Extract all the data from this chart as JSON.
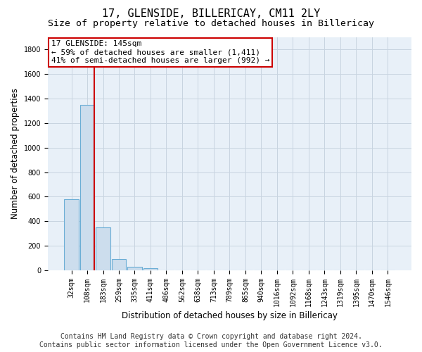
{
  "title": "17, GLENSIDE, BILLERICAY, CM11 2LY",
  "subtitle": "Size of property relative to detached houses in Billericay",
  "xlabel": "Distribution of detached houses by size in Billericay",
  "ylabel": "Number of detached properties",
  "footer_line1": "Contains HM Land Registry data © Crown copyright and database right 2024.",
  "footer_line2": "Contains public sector information licensed under the Open Government Licence v3.0.",
  "bar_labels": [
    "32sqm",
    "108sqm",
    "183sqm",
    "259sqm",
    "335sqm",
    "411sqm",
    "486sqm",
    "562sqm",
    "638sqm",
    "713sqm",
    "789sqm",
    "865sqm",
    "940sqm",
    "1016sqm",
    "1092sqm",
    "1168sqm",
    "1243sqm",
    "1319sqm",
    "1395sqm",
    "1470sqm",
    "1546sqm"
  ],
  "bar_heights": [
    580,
    1350,
    350,
    90,
    30,
    20,
    0,
    0,
    0,
    0,
    0,
    0,
    0,
    0,
    0,
    0,
    0,
    0,
    0,
    0,
    0
  ],
  "bar_color": "#ccdded",
  "bar_edgecolor": "#6aadd5",
  "bar_linewidth": 0.8,
  "ylim": [
    0,
    1900
  ],
  "yticks": [
    0,
    200,
    400,
    600,
    800,
    1000,
    1200,
    1400,
    1600,
    1800
  ],
  "grid_color": "#c8d4e0",
  "bg_color": "#e8f0f8",
  "annotation_text": "17 GLENSIDE: 145sqm\n← 59% of detached houses are smaller (1,411)\n41% of semi-detached houses are larger (992) →",
  "annotation_box_edgecolor": "#cc0000",
  "annotation_box_facecolor": "#ffffff",
  "property_line_color": "#cc0000",
  "title_fontsize": 11,
  "subtitle_fontsize": 9.5,
  "axis_label_fontsize": 8.5,
  "tick_fontsize": 7,
  "footer_fontsize": 7,
  "annotation_fontsize": 8
}
